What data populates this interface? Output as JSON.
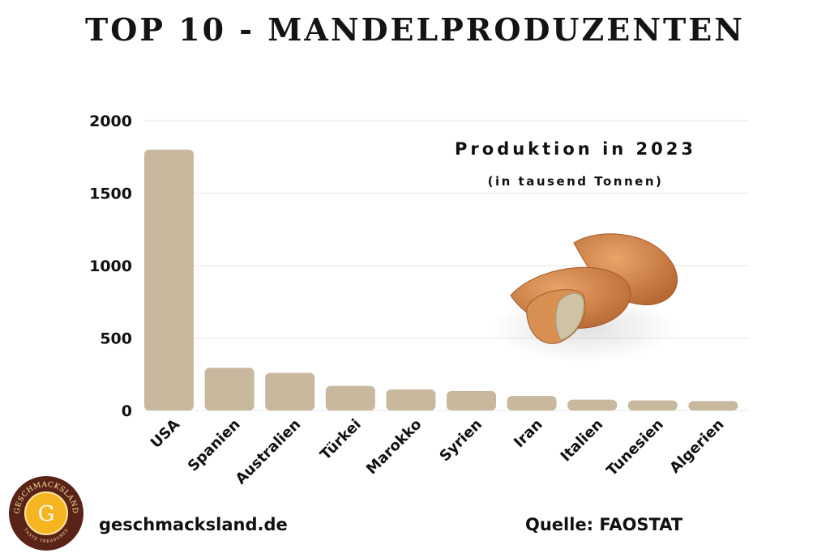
{
  "title": "TOP 10 - MANDELPRODUZENTEN",
  "subtitle": "Produktion in 2023",
  "unit_note": "(in tausend Tonnen)",
  "footer": {
    "website": "geschmacksland.de",
    "source": "Quelle: FAOSTAT"
  },
  "logo": {
    "text_top": "GESCHMACKSLAND",
    "letter": "G",
    "text_bottom": "TASTE TREASURES"
  },
  "colors": {
    "bar": "#c8b89e",
    "grid": "#e6e6e6",
    "logo_ring": "#5a2318",
    "logo_center": "#f5b520"
  },
  "chart_data": {
    "type": "bar",
    "categories": [
      "USA",
      "Spanien",
      "Australien",
      "Türkei",
      "Marokko",
      "Syrien",
      "Iran",
      "Italien",
      "Tunesien",
      "Algerien"
    ],
    "values": [
      1800,
      295,
      260,
      170,
      145,
      135,
      100,
      75,
      70,
      65
    ],
    "yticks": [
      0,
      500,
      1000,
      1500,
      2000
    ],
    "ylim": [
      0,
      2000
    ],
    "grid": true,
    "legend": "none",
    "title": "Produktion in 2023",
    "ylabel": "",
    "xlabel": ""
  }
}
